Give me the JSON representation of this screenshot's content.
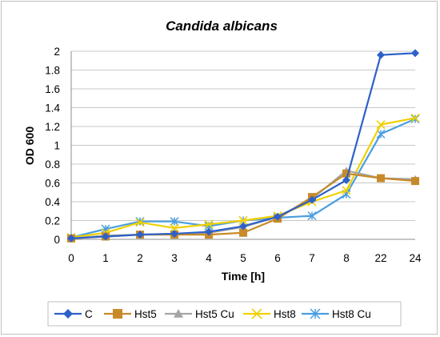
{
  "chart_data": {
    "type": "line",
    "title": "Candida albicans",
    "xlabel": "Time [h]",
    "ylabel": "OD 600",
    "categories": [
      "0",
      "1",
      "2",
      "3",
      "4",
      "5",
      "6",
      "7",
      "8",
      "22",
      "24"
    ],
    "ylim": [
      0,
      2
    ],
    "yticks": [
      "0",
      "0.2",
      "0.4",
      "0.6",
      "0.8",
      "1",
      "1.2",
      "1.4",
      "1.6",
      "1.8",
      "2"
    ],
    "grid": true,
    "legend_position": "bottom",
    "series": [
      {
        "name": "C",
        "color": "#2e61c8",
        "marker": "diamond",
        "values": [
          0.01,
          0.03,
          0.05,
          0.06,
          0.08,
          0.14,
          0.24,
          0.42,
          0.63,
          1.96,
          1.98
        ]
      },
      {
        "name": "Hst5",
        "color": "#c88a28",
        "marker": "square",
        "values": [
          0.01,
          0.03,
          0.05,
          0.05,
          0.05,
          0.07,
          0.22,
          0.45,
          0.7,
          0.65,
          0.62
        ]
      },
      {
        "name": "Hst5 Cu",
        "color": "#a5a5a5",
        "marker": "triangle",
        "values": [
          0.01,
          0.04,
          0.05,
          0.06,
          0.07,
          0.13,
          0.24,
          0.43,
          0.73,
          0.65,
          0.64
        ]
      },
      {
        "name": "Hst8",
        "color": "#f0d000",
        "marker": "x",
        "values": [
          0.02,
          0.07,
          0.18,
          0.12,
          0.16,
          0.2,
          0.25,
          0.4,
          0.52,
          1.22,
          1.29
        ]
      },
      {
        "name": "Hst8 Cu",
        "color": "#4a9ee0",
        "marker": "star",
        "values": [
          0.02,
          0.11,
          0.19,
          0.19,
          0.14,
          0.2,
          0.23,
          0.25,
          0.48,
          1.12,
          1.28
        ]
      }
    ]
  }
}
